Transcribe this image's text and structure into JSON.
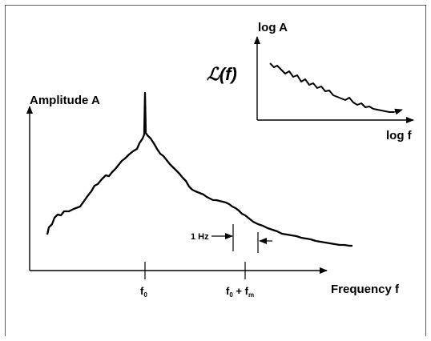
{
  "main_plot": {
    "y_axis_label": "Amplitude A",
    "x_axis_label": "Frequency f",
    "tick_f0": {
      "base": "f",
      "sub": "0"
    },
    "tick_f0_fm": {
      "base": "f",
      "sub1": "0",
      "plus": " + ",
      "base2": "f",
      "sub2": "m"
    },
    "bandwidth_label": "1 Hz"
  },
  "inset_plot": {
    "y_axis_label": "log A",
    "x_axis_label": "log f",
    "curve_label": "ℒ(f)"
  },
  "colors": {
    "stroke": "#000000",
    "background": "#ffffff"
  }
}
